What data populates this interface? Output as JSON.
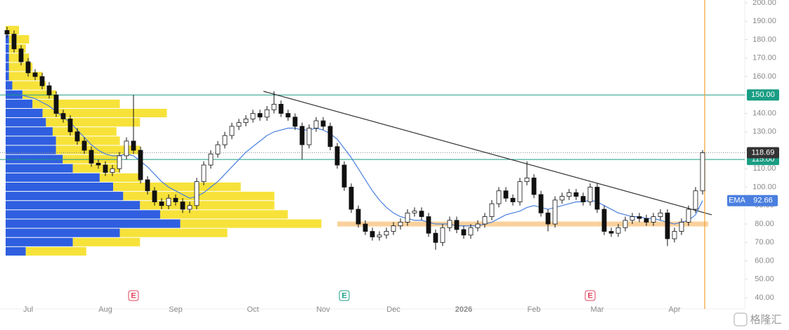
{
  "chart_data": {
    "type": "candlestick",
    "categories": [
      null,
      null,
      null,
      "Jul",
      null,
      null,
      null,
      null,
      null,
      null,
      null,
      null,
      null,
      null,
      "Aug",
      null,
      null,
      null,
      null,
      null,
      null,
      null,
      null,
      null,
      "Sep",
      null,
      null,
      null,
      null,
      null,
      null,
      null,
      null,
      null,
      null,
      "Oct",
      null,
      null,
      null,
      null,
      null,
      null,
      null,
      null,
      null,
      "Nov",
      null,
      null,
      null,
      null,
      null,
      null,
      null,
      null,
      null,
      "Dec",
      null,
      null,
      null,
      null,
      null,
      null,
      null,
      null,
      null,
      "2026",
      null,
      null,
      null,
      null,
      null,
      null,
      null,
      null,
      null,
      "Feb",
      null,
      null,
      null,
      null,
      null,
      null,
      null,
      null,
      "Mar",
      null,
      null,
      null,
      null,
      null,
      null,
      null,
      null,
      null,
      null,
      "Apr",
      null,
      null,
      null,
      null
    ],
    "open": [
      185,
      183,
      175,
      168,
      162,
      160,
      155,
      150,
      140,
      137,
      130,
      125,
      120,
      113,
      112,
      108,
      110,
      117,
      125,
      120,
      104,
      98,
      92,
      90,
      94,
      92,
      88,
      90,
      103,
      112,
      118,
      123,
      128,
      133,
      135,
      137,
      140,
      138,
      142,
      145,
      140,
      138,
      133,
      123,
      132,
      136,
      133,
      122,
      112,
      100,
      88,
      80,
      76,
      73,
      74,
      76,
      79,
      81,
      86,
      87,
      84,
      75,
      70,
      78,
      82,
      77,
      74,
      78,
      80,
      84,
      91,
      98,
      94,
      92,
      103,
      105,
      96,
      86,
      80,
      93,
      95,
      97,
      95,
      92,
      100,
      88,
      76,
      75,
      78,
      82,
      84,
      83,
      81,
      84,
      86,
      72,
      76,
      81,
      88,
      98
    ],
    "high": [
      187,
      185,
      177,
      170,
      164,
      162,
      157,
      152,
      142,
      139,
      132,
      127,
      122,
      115,
      114,
      112,
      119,
      127,
      150,
      122,
      106,
      100,
      94,
      96,
      96,
      94,
      92,
      105,
      114,
      120,
      125,
      130,
      135,
      137,
      139,
      142,
      142,
      144,
      152,
      147,
      142,
      140,
      135,
      134,
      138,
      138,
      135,
      124,
      114,
      102,
      90,
      82,
      78,
      76,
      78,
      81,
      83,
      88,
      89,
      89,
      86,
      77,
      80,
      84,
      84,
      79,
      80,
      82,
      86,
      93,
      100,
      100,
      96,
      105,
      114,
      107,
      98,
      88,
      95,
      97,
      99,
      99,
      97,
      102,
      102,
      90,
      78,
      80,
      84,
      86,
      86,
      85,
      86,
      88,
      88,
      78,
      83,
      90,
      100,
      120
    ],
    "low": [
      181,
      173,
      166,
      160,
      158,
      153,
      148,
      138,
      135,
      128,
      123,
      118,
      111,
      110,
      106,
      106,
      108,
      115,
      118,
      102,
      96,
      90,
      88,
      88,
      90,
      86,
      86,
      88,
      101,
      110,
      116,
      121,
      126,
      131,
      133,
      135,
      136,
      136,
      140,
      138,
      136,
      131,
      115,
      121,
      130,
      131,
      120,
      110,
      98,
      86,
      78,
      74,
      71,
      71,
      72,
      74,
      77,
      79,
      84,
      82,
      73,
      66,
      68,
      76,
      75,
      72,
      72,
      76,
      78,
      82,
      89,
      92,
      90,
      90,
      101,
      94,
      84,
      76,
      78,
      91,
      93,
      93,
      90,
      90,
      86,
      74,
      73,
      73,
      76,
      80,
      81,
      79,
      79,
      82,
      68,
      70,
      74,
      79,
      86,
      96
    ],
    "close": [
      183,
      175,
      168,
      162,
      160,
      155,
      150,
      140,
      137,
      130,
      125,
      120,
      113,
      112,
      108,
      110,
      117,
      125,
      120,
      104,
      98,
      92,
      90,
      94,
      92,
      88,
      90,
      103,
      112,
      118,
      123,
      128,
      133,
      135,
      137,
      140,
      138,
      142,
      145,
      140,
      138,
      133,
      123,
      132,
      136,
      133,
      122,
      112,
      100,
      88,
      80,
      76,
      73,
      74,
      76,
      79,
      81,
      86,
      87,
      84,
      75,
      70,
      78,
      82,
      77,
      74,
      78,
      80,
      84,
      91,
      98,
      94,
      92,
      103,
      105,
      96,
      86,
      80,
      93,
      95,
      97,
      95,
      92,
      100,
      88,
      76,
      75,
      78,
      82,
      84,
      83,
      81,
      84,
      86,
      72,
      76,
      81,
      88,
      98,
      118.69
    ],
    "up_color": "#ffffff",
    "down_color": "#111111",
    "series": [
      {
        "name": "EMA",
        "color": "#4a7fe0",
        "values": [
          null,
          null,
          150,
          149,
          148,
          146,
          144,
          141,
          138,
          135,
          131,
          127,
          123,
          120,
          118,
          117,
          117,
          118,
          117,
          114,
          111,
          107,
          103,
          100,
          98,
          96,
          94,
          95,
          97,
          100,
          103,
          107,
          111,
          115,
          119,
          122,
          125,
          128,
          130,
          131,
          132,
          132,
          131,
          131,
          132,
          131,
          129,
          126,
          121,
          116,
          110,
          104,
          98,
          93,
          89,
          86,
          84,
          83,
          82,
          82,
          81,
          80,
          80,
          80,
          79,
          79,
          79,
          79,
          80,
          81,
          83,
          85,
          86,
          87,
          89,
          90,
          89,
          88,
          89,
          90,
          91,
          92,
          92,
          93,
          92,
          90,
          88,
          86,
          85,
          84,
          84,
          83,
          83,
          82,
          81,
          80,
          81,
          82,
          85,
          92.66
        ]
      }
    ],
    "ylim": [
      38,
      200
    ],
    "yticks": [
      {
        "value": 40,
        "label": "40.00"
      },
      {
        "value": 50,
        "label": "50.00"
      },
      {
        "value": 60,
        "label": "60.00"
      },
      {
        "value": 70,
        "label": "70.00"
      },
      {
        "value": 80,
        "label": "80.00"
      },
      {
        "value": 90,
        "label": "90.00"
      },
      {
        "value": 100,
        "label": "100.00"
      },
      {
        "value": 110,
        "label": "110.00"
      },
      {
        "value": 120,
        "label": "120.00"
      },
      {
        "value": 130,
        "label": "130.00"
      },
      {
        "value": 140,
        "label": "140.00"
      },
      {
        "value": 150,
        "label": "150.00"
      },
      {
        "value": 160,
        "label": "160.00"
      },
      {
        "value": 170,
        "label": "170.00"
      },
      {
        "value": 180,
        "label": "180.00"
      },
      {
        "value": 190,
        "label": "190.00"
      },
      {
        "value": 200,
        "label": "200.00"
      }
    ],
    "hlines": [
      {
        "value": 150,
        "label": "150.00",
        "color": "#1a9e84"
      },
      {
        "value": 115,
        "label": "115.00",
        "color": "#1a9e84"
      }
    ],
    "last_price": {
      "value": 118.69,
      "label": "118.69",
      "color": "#333333"
    },
    "band": {
      "value": 80,
      "color": "#f9c98a"
    },
    "trend_line": {
      "start": 152,
      "end": 85,
      "color": "#333333"
    },
    "volume_profile": {
      "prices": [
        185,
        180,
        175,
        170,
        165,
        160,
        155,
        150,
        145,
        140,
        135,
        130,
        125,
        120,
        115,
        110,
        105,
        100,
        95,
        90,
        85,
        80,
        75,
        70,
        65
      ],
      "blue": [
        0,
        5,
        5,
        5,
        5,
        5,
        10,
        25,
        40,
        55,
        60,
        70,
        75,
        75,
        85,
        100,
        140,
        160,
        175,
        200,
        230,
        260,
        170,
        100,
        30
      ],
      "yellow": [
        20,
        30,
        25,
        30,
        35,
        50,
        50,
        50,
        130,
        185,
        140,
        95,
        95,
        125,
        85,
        70,
        60,
        190,
        225,
        200,
        190,
        210,
        160,
        100,
        90
      ],
      "blue_color": "#2f5fe0",
      "yellow_color": "#f7e23a",
      "xlim": [
        0,
        1100
      ]
    },
    "events": [
      {
        "label": "E",
        "color": "#e0405a"
      },
      {
        "label": "E",
        "color": "#1a9e84"
      },
      {
        "label": "E",
        "color": "#e0405a"
      }
    ],
    "watermark": "格隆汇"
  }
}
